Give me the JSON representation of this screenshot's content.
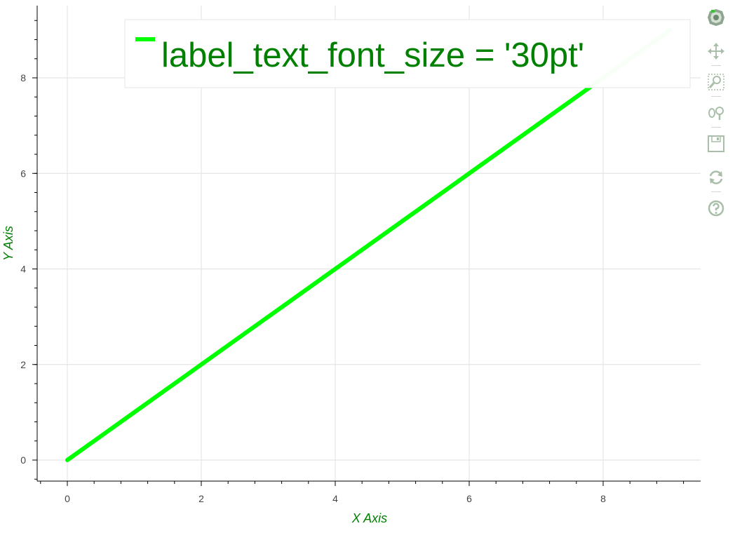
{
  "chart_data": {
    "type": "line",
    "x": [
      0,
      1,
      2,
      3,
      4,
      5,
      6,
      7,
      8,
      9
    ],
    "series": [
      {
        "name": "label_text_font_size = '30pt'",
        "values": [
          0,
          1,
          2,
          3,
          4,
          5,
          6,
          7,
          8,
          9
        ],
        "color": "#00ff00"
      }
    ],
    "xlabel": "X Axis",
    "ylabel": "Y Axis",
    "xlim": [
      -0.45,
      9.45
    ],
    "ylim": [
      -0.45,
      9.45
    ],
    "x_ticks": [
      0,
      2,
      4,
      6,
      8
    ],
    "y_ticks": [
      0,
      2,
      4,
      6,
      8
    ],
    "x_tick_labels": [
      "0",
      "2",
      "4",
      "6",
      "8"
    ],
    "y_tick_labels": [
      "0",
      "2",
      "4",
      "6",
      "8"
    ],
    "grid": true,
    "legend_position": "top-right",
    "axis_title_color": "#008000",
    "legend_text_color": "#008000",
    "grid_color": "#e5e5e5"
  },
  "toolbar": {
    "tools": [
      {
        "name": "bokeh-logo-icon",
        "title": "Bokeh"
      },
      {
        "name": "pan-icon",
        "title": "Pan"
      },
      {
        "name": "box-zoom-icon",
        "title": "Box Zoom"
      },
      {
        "name": "wheel-zoom-icon",
        "title": "Wheel Zoom"
      },
      {
        "name": "save-icon",
        "title": "Save"
      },
      {
        "name": "reset-icon",
        "title": "Reset"
      },
      {
        "name": "help-icon",
        "title": "Help"
      }
    ]
  }
}
